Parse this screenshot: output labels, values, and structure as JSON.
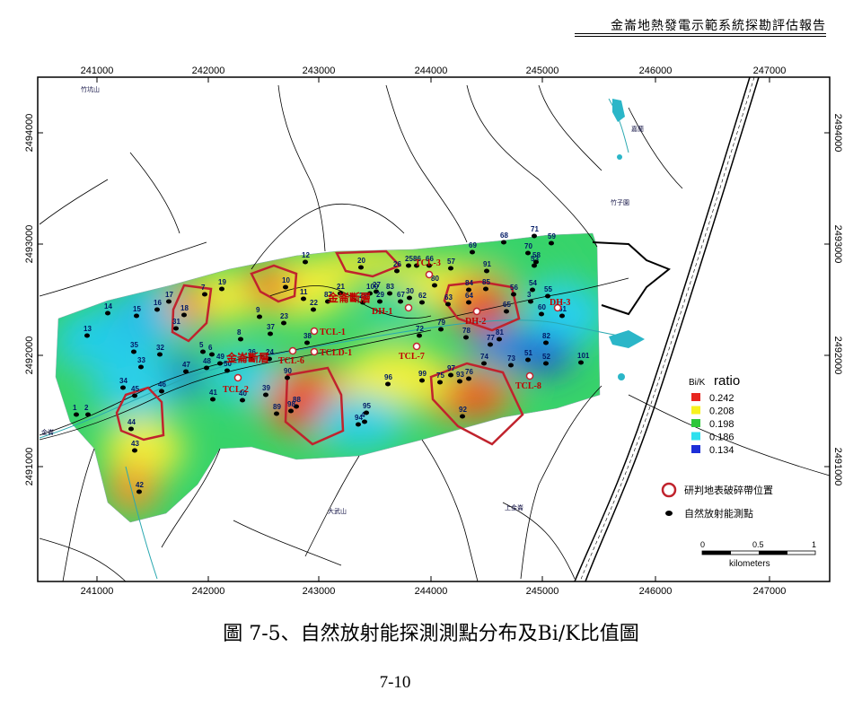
{
  "header": {
    "title": "金崙地熱發電示範系統探勘評估報告"
  },
  "map": {
    "x_ticks": [
      "241000",
      "242000",
      "243000",
      "244000",
      "245000",
      "246000",
      "247000"
    ],
    "y_ticks": [
      "2494000",
      "2493000",
      "2492000",
      "2491000"
    ],
    "place_names": [
      "竹坑山",
      "竹子園",
      "嘉蘭",
      "金崙",
      "大武山",
      "上金崙"
    ],
    "site_labels": [
      "TCL-1",
      "TCLD-1",
      "TCL-3",
      "TCL-6",
      "TCL-7",
      "TCL-2",
      "TCL-8",
      "DH-1",
      "DH-2",
      "DH-3"
    ],
    "fault_labels": [
      "金崙斷層",
      "金崙斷層"
    ],
    "station_labels": [
      "1",
      "2",
      "3",
      "4",
      "5",
      "6",
      "7",
      "8",
      "9",
      "10",
      "11",
      "12",
      "13",
      "14",
      "15",
      "16",
      "17",
      "18",
      "19",
      "20",
      "21",
      "22",
      "23",
      "24",
      "25",
      "26",
      "27",
      "28",
      "29",
      "30",
      "31",
      "32",
      "33",
      "34",
      "35",
      "36",
      "37",
      "38",
      "39",
      "40",
      "41",
      "42",
      "43",
      "44",
      "45",
      "46",
      "47",
      "48",
      "49",
      "50",
      "51",
      "52",
      "53",
      "54",
      "55",
      "56",
      "57",
      "58",
      "59",
      "60",
      "61",
      "62",
      "63",
      "64",
      "65",
      "66",
      "67",
      "68",
      "69",
      "70",
      "71",
      "72",
      "73",
      "74",
      "75",
      "76",
      "77",
      "78",
      "79",
      "80",
      "81",
      "82",
      "83",
      "84",
      "85",
      "86",
      "87",
      "88",
      "89",
      "90",
      "91",
      "92",
      "93",
      "94",
      "95",
      "96",
      "97",
      "98",
      "99",
      "100",
      "101"
    ]
  },
  "legend": {
    "title_prefix": "Bi/K",
    "title": "ratio",
    "classes": [
      {
        "value": "0.242",
        "color": "#e8261f"
      },
      {
        "value": "0.208",
        "color": "#f7f21e"
      },
      {
        "value": "0.198",
        "color": "#2fc63a"
      },
      {
        "value": "0.186",
        "color": "#2fe0ee"
      },
      {
        "value": "0.134",
        "color": "#1d2fd8"
      }
    ],
    "zone_label": "研判地表破碎帶位置",
    "station_label": "自然放射能測點",
    "scale_ticks": [
      "0",
      "0.5",
      "1"
    ],
    "scale_unit": "kilometers"
  },
  "caption": "圖 7-5、自然放射能探測測點分布及Bi/K比值圖",
  "page_number": "7-10"
}
